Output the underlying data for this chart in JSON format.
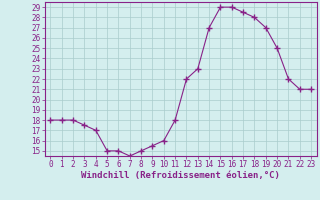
{
  "x": [
    0,
    1,
    2,
    3,
    4,
    5,
    6,
    7,
    8,
    9,
    10,
    11,
    12,
    13,
    14,
    15,
    16,
    17,
    18,
    19,
    20,
    21,
    22,
    23
  ],
  "y": [
    18.0,
    18.0,
    18.0,
    17.5,
    17.0,
    15.0,
    15.0,
    14.5,
    15.0,
    15.5,
    16.0,
    18.0,
    22.0,
    23.0,
    27.0,
    29.0,
    29.0,
    28.5,
    28.0,
    27.0,
    25.0,
    22.0,
    21.0,
    21.0
  ],
  "line_color": "#882288",
  "marker": "+",
  "marker_size": 4,
  "marker_linewidth": 1.0,
  "bg_color": "#d4eeee",
  "grid_color": "#aacccc",
  "axis_label_color": "#882288",
  "tick_label_color": "#882288",
  "xlabel": "Windchill (Refroidissement éolien,°C)",
  "ylim_min": 14.5,
  "ylim_max": 29.5,
  "xlim_min": -0.5,
  "xlim_max": 23.5,
  "yticks": [
    15,
    16,
    17,
    18,
    19,
    20,
    21,
    22,
    23,
    24,
    25,
    26,
    27,
    28,
    29
  ],
  "xticks": [
    0,
    1,
    2,
    3,
    4,
    5,
    6,
    7,
    8,
    9,
    10,
    11,
    12,
    13,
    14,
    15,
    16,
    17,
    18,
    19,
    20,
    21,
    22,
    23
  ],
  "spine_color": "#882288",
  "tick_fontsize": 5.5,
  "xlabel_fontsize": 6.5
}
